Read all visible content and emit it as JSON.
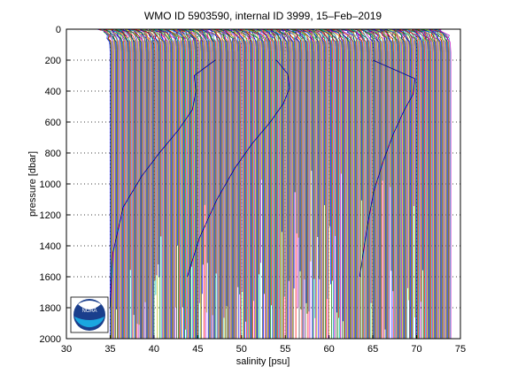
{
  "chart_data": {
    "type": "line",
    "title": "WMO ID 5903590, internal ID 3999, 15–Feb–2019",
    "xlabel": "salinity [psu]",
    "ylabel": "pressure [dbar]",
    "xlim": [
      30,
      75
    ],
    "ylim": [
      2000,
      0
    ],
    "y_reversed": true,
    "grid": true,
    "grid_style": "dotted",
    "x_ticks": [
      "30",
      "35",
      "40",
      "45",
      "50",
      "55",
      "60",
      "65",
      "70",
      "75"
    ],
    "y_ticks": [
      "0",
      "200",
      "400",
      "600",
      "800",
      "1000",
      "1200",
      "1400",
      "1600",
      "1800",
      "2000"
    ],
    "legend": "none",
    "profiles": {
      "description_note": "waterfall of salinity profiles, each offset along x",
      "count": 390,
      "first_offset_salinity": 35.0,
      "offset_step": 0.1,
      "base_profile_pressure": [
        0,
        5,
        10,
        20,
        40,
        60,
        80,
        100,
        150,
        200,
        300,
        500,
        1000,
        1500,
        2000
      ],
      "base_profile_salinity": [
        33.6,
        33.8,
        34.0,
        34.3,
        34.6,
        34.8,
        34.9,
        34.95,
        35.0,
        35.0,
        35.0,
        35.0,
        35.0,
        35.0,
        35.0
      ]
    },
    "highlight_curves": [
      {
        "x": [
          47.0,
          44.6,
          44.8,
          44.4,
          42.8,
          40.6,
          38.6,
          36.5,
          35.3,
          35.0
        ],
        "y": [
          200,
          300,
          400,
          520,
          650,
          800,
          950,
          1150,
          1450,
          1800
        ]
      },
      {
        "x": [
          54.0,
          55.3,
          55.5,
          54.8,
          53.3,
          51.2,
          49.2,
          47.2,
          45.2,
          43.8
        ],
        "y": [
          200,
          290,
          380,
          480,
          600,
          740,
          900,
          1100,
          1350,
          1600
        ]
      },
      {
        "x": [
          65.0,
          69.8,
          69.6,
          68.6,
          67.3,
          66.2,
          65.1,
          64.3,
          63.5
        ],
        "y": [
          200,
          320,
          420,
          520,
          680,
          850,
          1050,
          1300,
          1600
        ]
      }
    ],
    "colors": [
      "#0000ff",
      "#008000",
      "#ff0000",
      "#00bfbf",
      "#bf00bf",
      "#bfbf00",
      "#404040"
    ],
    "logo_text": "NOAA"
  }
}
